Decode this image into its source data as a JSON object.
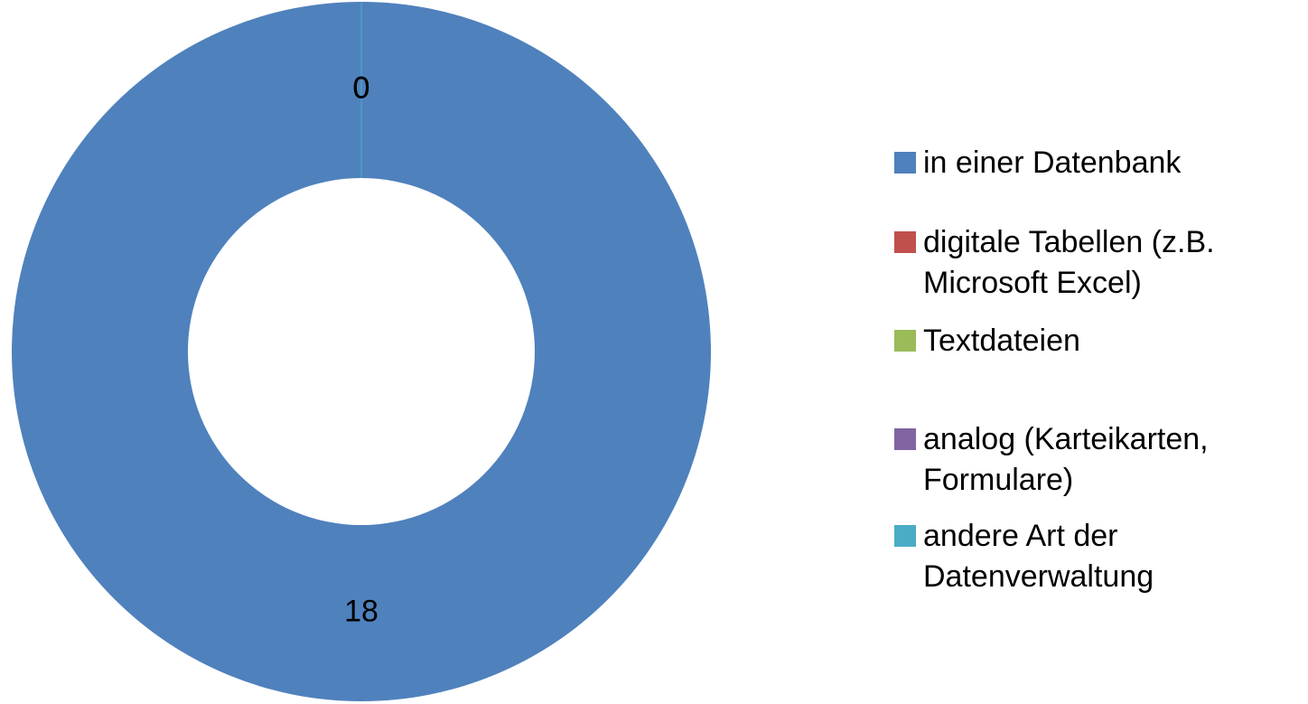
{
  "chart_data": {
    "type": "donut",
    "categories": [
      "in einer Datenbank",
      "digitale Tabellen (z.B. Microsoft Excel)",
      "Textdateien",
      "analog (Karteikarten, Formulare)",
      "andere Art der Datenverwaltung"
    ],
    "values": [
      18,
      0,
      0,
      0,
      0
    ],
    "colors": [
      "#4f81bd",
      "#c0504d",
      "#9bbb59",
      "#8064a2",
      "#4bacc6"
    ],
    "legend": "right"
  }
}
